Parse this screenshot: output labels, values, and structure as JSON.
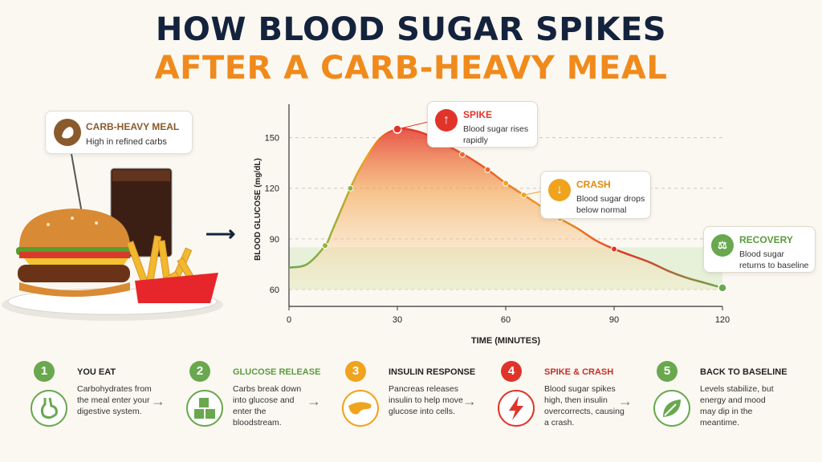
{
  "title_line1": "HOW BLOOD SUGAR SPIKES",
  "title_line2": "AFTER A CARB-HEAVY MEAL",
  "meal": {
    "title": "CARB-HEAVY MEAL",
    "subtitle": "High in refined carbs"
  },
  "colors": {
    "navy": "#14233d",
    "orange": "#f08a1c",
    "red": "#e0342a",
    "amber": "#f0a31c",
    "green": "#6aa84f"
  },
  "callouts": {
    "spike": {
      "title": "SPIKE",
      "text1": "Blood sugar rises",
      "text2": "rapidly",
      "icon": "arrow-up-icon"
    },
    "crash": {
      "title": "CRASH",
      "text1": "Blood sugar drops",
      "text2": "below normal",
      "icon": "arrow-down-icon"
    },
    "recovery": {
      "title": "RECOVERY",
      "text1": "Blood sugar",
      "text2": "returns to baseline",
      "icon": "scale-icon"
    }
  },
  "chart_data": {
    "type": "line",
    "xlabel": "TIME (MINUTES)",
    "ylabel": "BLOOD GLUCOSE (mg/dL)",
    "xlim": [
      0,
      120
    ],
    "ylim": [
      50,
      165
    ],
    "xticks": [
      0,
      30,
      60,
      90,
      120
    ],
    "yticks": [
      60,
      90,
      120,
      150
    ],
    "normal_band": [
      60,
      85
    ],
    "grid": true,
    "series": [
      {
        "x": [
          0,
          5,
          10,
          12,
          17,
          20,
          25,
          30,
          35,
          40,
          45,
          50,
          55,
          60,
          65,
          70,
          75,
          80,
          85,
          90,
          95,
          100,
          105,
          110,
          115,
          120
        ],
        "y": [
          73,
          75,
          86,
          95,
          120,
          133,
          149,
          155,
          154,
          150,
          144,
          138,
          131,
          123,
          116,
          109,
          102,
          96,
          89,
          84,
          80,
          76,
          71,
          67,
          64,
          61
        ]
      }
    ],
    "markers": [
      {
        "x": 10,
        "y": 86
      },
      {
        "x": 17,
        "y": 120
      },
      {
        "x": 30,
        "y": 155
      },
      {
        "x": 40,
        "y": 150
      },
      {
        "x": 48,
        "y": 140
      },
      {
        "x": 55,
        "y": 131
      },
      {
        "x": 60,
        "y": 123
      },
      {
        "x": 65,
        "y": 116
      },
      {
        "x": 75,
        "y": 102
      },
      {
        "x": 90,
        "y": 84
      },
      {
        "x": 120,
        "y": 61
      }
    ]
  },
  "steps": [
    {
      "num": "1",
      "title": "YOU EAT",
      "text": "Carbohydrates from the meal enter your digestive system.",
      "icon": "stomach-icon",
      "color": "#6aa84f"
    },
    {
      "num": "2",
      "title": "GLUCOSE RELEASE",
      "text": "Carbs break down into glucose and enter the bloodstream.",
      "icon": "glucose-cubes-icon",
      "color": "#6aa84f"
    },
    {
      "num": "3",
      "title": "INSULIN RESPONSE",
      "text": "Pancreas releases insulin to help move glucose into cells.",
      "icon": "pancreas-icon",
      "color": "#f0a31c"
    },
    {
      "num": "4",
      "title": "SPIKE & CRASH",
      "text": "Blood sugar spikes high, then insulin overcorrects, causing a crash.",
      "icon": "lightning-icon",
      "color": "#e0342a"
    },
    {
      "num": "5",
      "title": "BACK TO BASELINE",
      "text": "Levels stabilize, but energy and mood may dip in the meantime.",
      "icon": "leaf-icon",
      "color": "#6aa84f"
    }
  ]
}
